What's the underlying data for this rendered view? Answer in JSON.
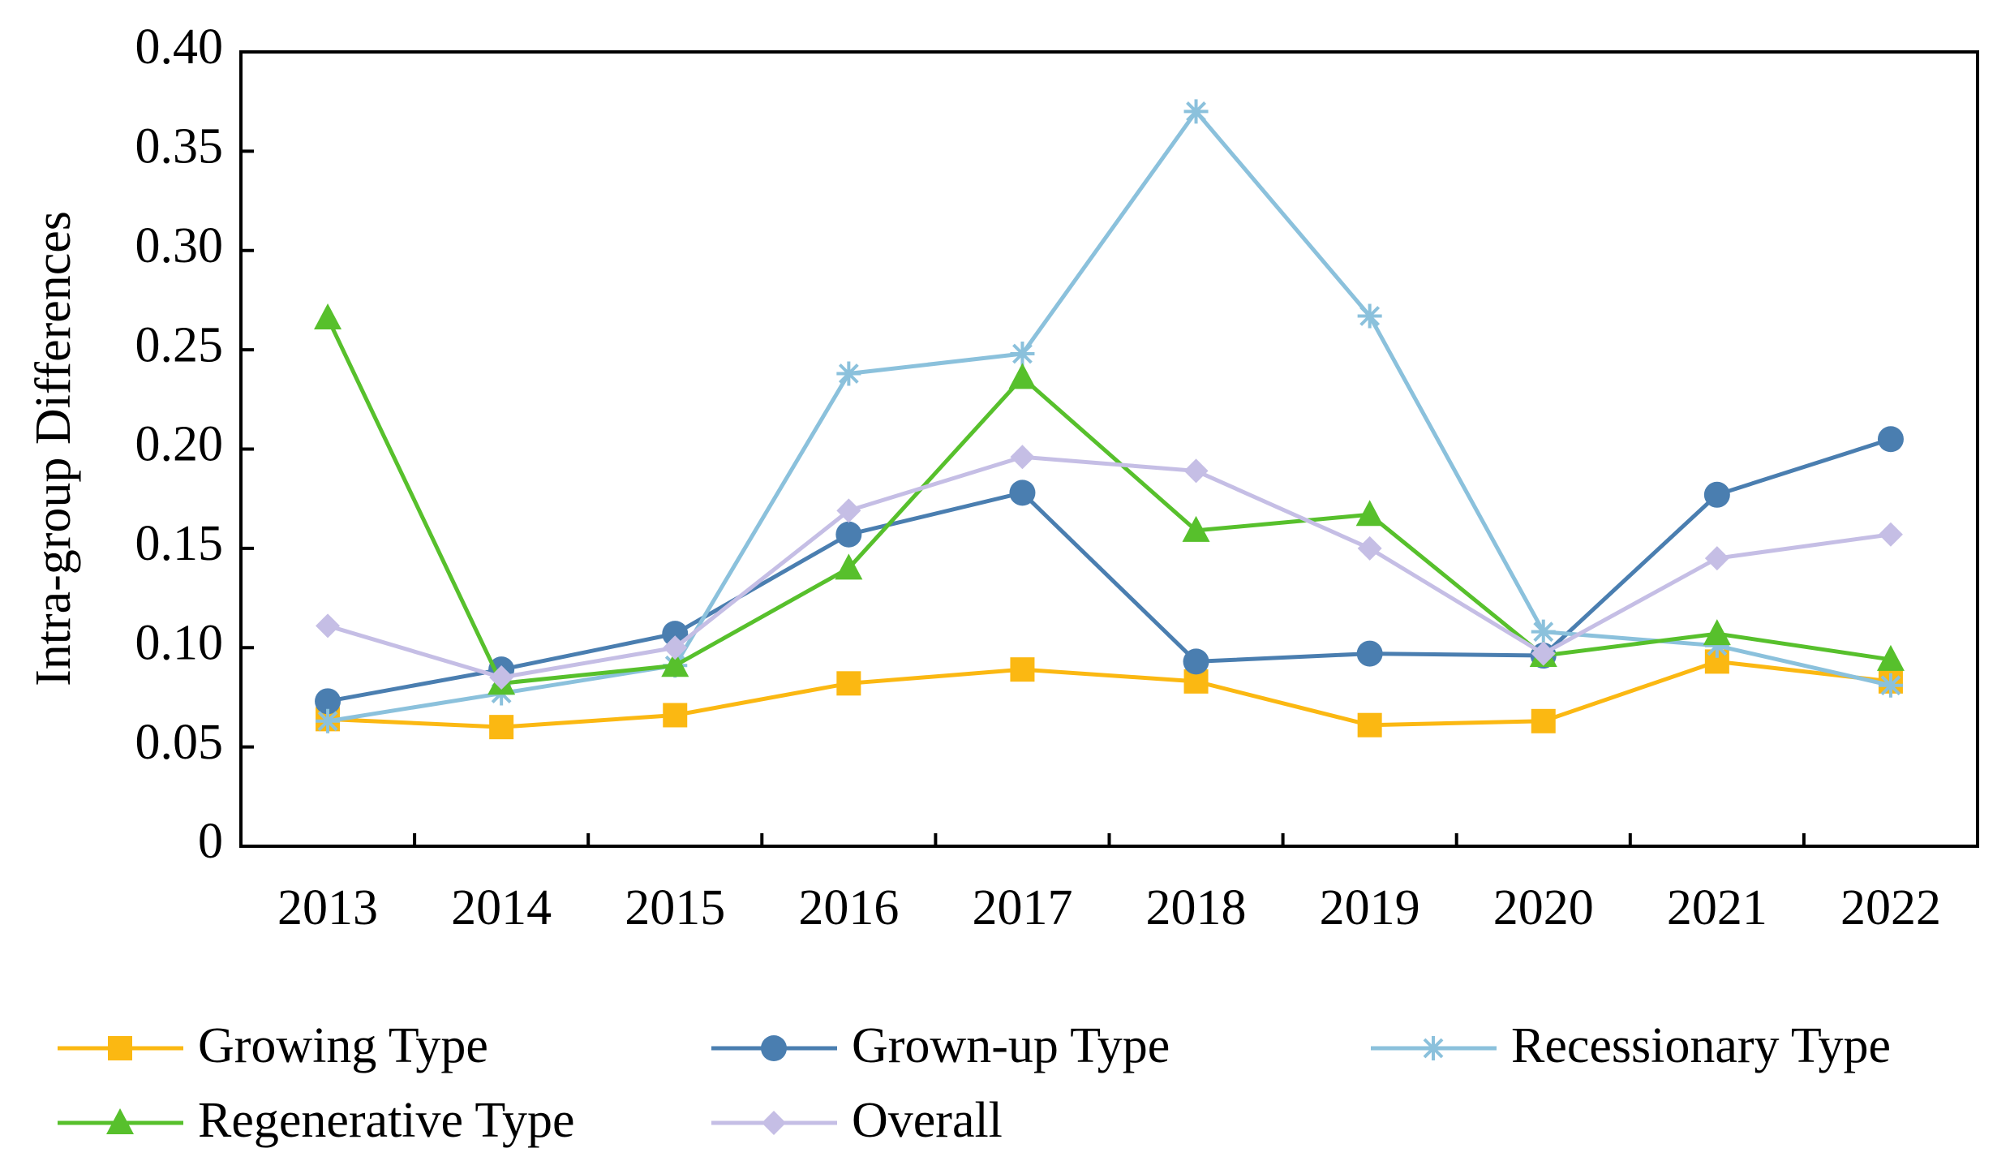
{
  "chart_data": {
    "type": "line",
    "y_label": "Intra-group Differences",
    "categories": [
      "2013",
      "2014",
      "2015",
      "2016",
      "2017",
      "2018",
      "2019",
      "2020",
      "2021",
      "2022"
    ],
    "ylim": [
      0,
      0.4
    ],
    "yticks": [
      0,
      0.05,
      {
        "value": 0.1,
        "label": "0.10"
      },
      0.15,
      {
        "value": 0.2,
        "label": "0.20"
      },
      0.25,
      {
        "value": 0.3,
        "label": "0.30"
      },
      0.35,
      {
        "value": 0.4,
        "label": "0.40"
      }
    ],
    "grid": false,
    "legend": "bottom",
    "series": [
      {
        "name": "Growing Type",
        "color": "#fbb812",
        "marker": "square",
        "values": [
          0.064,
          0.06,
          0.066,
          0.082,
          0.089,
          0.083,
          0.061,
          0.063,
          0.093,
          0.083
        ]
      },
      {
        "name": "Grown-up Type",
        "color": "#4a7eb0",
        "marker": "circle",
        "values": [
          0.073,
          0.089,
          0.107,
          0.157,
          0.178,
          0.093,
          0.097,
          0.096,
          0.177,
          0.205
        ]
      },
      {
        "name": "Recessionary Type",
        "color": "#8bc1dc",
        "marker": "asterisk",
        "values": [
          0.063,
          0.077,
          0.091,
          0.238,
          0.248,
          0.37,
          0.267,
          0.108,
          0.101,
          0.081
        ]
      },
      {
        "name": "Regenerative Type",
        "color": "#57c02c",
        "marker": "triangle",
        "values": [
          0.266,
          0.082,
          0.091,
          0.14,
          0.236,
          0.159,
          0.167,
          0.096,
          0.107,
          0.094
        ]
      },
      {
        "name": "Overall",
        "color": "#c5bee5",
        "marker": "diamond",
        "values": [
          0.111,
          0.085,
          0.1,
          0.169,
          0.196,
          0.189,
          0.15,
          0.097,
          0.145,
          0.157
        ]
      }
    ]
  }
}
